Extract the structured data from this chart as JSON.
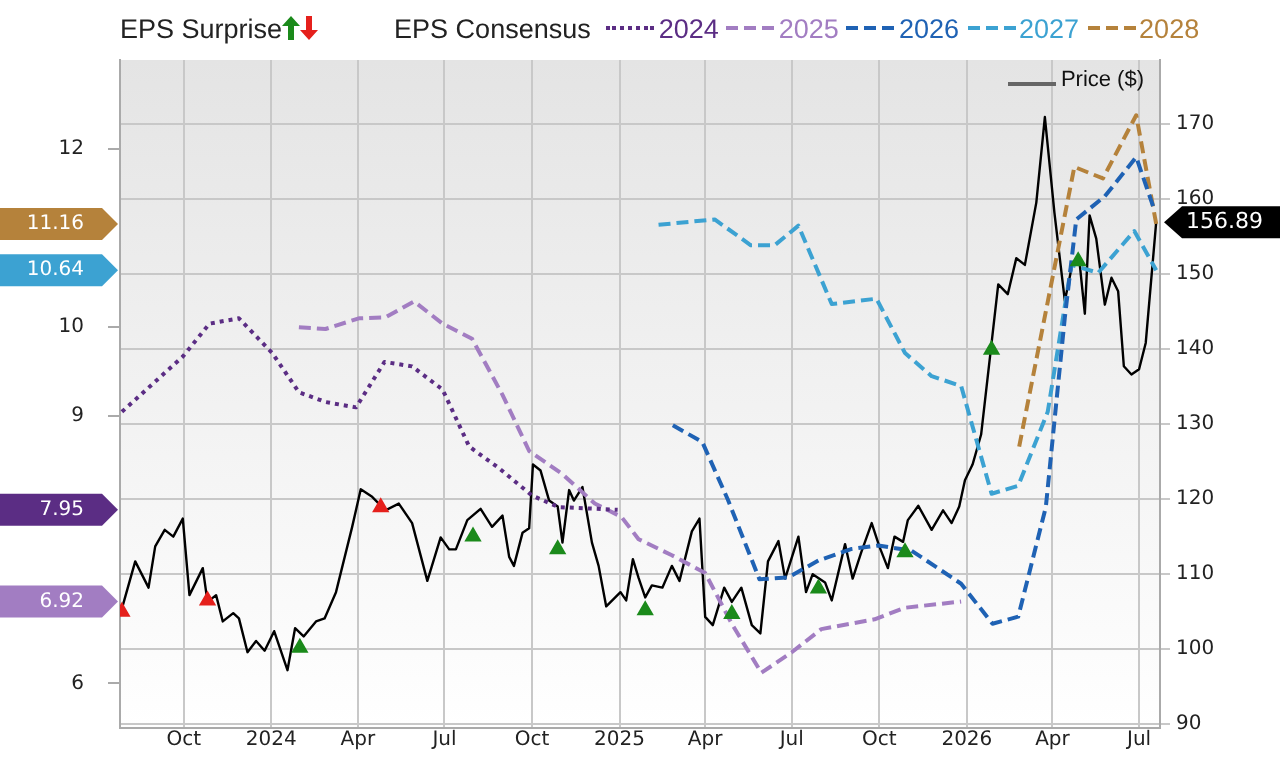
{
  "chart_data": {
    "type": "line",
    "annotations": [
      "EPS Surprise",
      "EPS Consensus"
    ],
    "legend": "top",
    "grid": true,
    "xlim": [
      "2023-07-26",
      "2026-07-23"
    ],
    "xticks": [
      {
        "value": "2023-10-01",
        "label": "Oct"
      },
      {
        "value": "2024-01-01",
        "label": "2024"
      },
      {
        "value": "2024-04-01",
        "label": "Apr"
      },
      {
        "value": "2024-07-01",
        "label": "Jul"
      },
      {
        "value": "2024-10-01",
        "label": "Oct"
      },
      {
        "value": "2025-01-01",
        "label": "2025"
      },
      {
        "value": "2025-04-01",
        "label": "Apr"
      },
      {
        "value": "2025-07-01",
        "label": "Jul"
      },
      {
        "value": "2025-10-01",
        "label": "Oct"
      },
      {
        "value": "2026-01-01",
        "label": "2026"
      },
      {
        "value": "2026-04-01",
        "label": "Apr"
      },
      {
        "value": "2026-07-01",
        "label": "Jul"
      }
    ],
    "ylim": [
      5.5,
      13
    ],
    "yticks": [
      6,
      {
        "value": 6.92,
        "label": "6.92"
      },
      {
        "value": 7.95,
        "label": "7.95"
      },
      9,
      10,
      {
        "value": 10.64,
        "label": "10.64"
      },
      {
        "value": 11.16,
        "label": "11.16"
      },
      12
    ],
    "y2lim": [
      89.5,
      178.5
    ],
    "y2ticks": [
      90,
      100,
      110,
      120,
      130,
      140,
      150,
      160,
      170
    ],
    "series": [
      {
        "name": "2024",
        "color": "#5b2d84",
        "line_style": "dotted",
        "x": [
          "2023-07-28",
          "2023-09-30",
          "2023-10-28",
          "2023-11-28",
          "2024-01-02",
          "2024-01-30",
          "2024-02-27",
          "2024-03-30",
          "2024-04-29",
          "2024-05-28",
          "2024-06-29",
          "2024-07-27",
          "2024-08-27",
          "2024-10-01",
          "2024-10-29",
          "2024-12-30"
        ],
        "values": [
          9.05,
          9.67,
          10.04,
          10.1,
          9.71,
          9.27,
          9.16,
          9.1,
          9.61,
          9.56,
          9.3,
          8.66,
          8.42,
          8.11,
          7.98,
          7.95
        ]
      },
      {
        "name": "2025",
        "color": "#a27dc2",
        "line_style": "dashed",
        "x": [
          "2024-01-30",
          "2024-02-27",
          "2024-04-02",
          "2024-04-30",
          "2024-05-30",
          "2024-06-29",
          "2024-07-30",
          "2024-08-31",
          "2024-09-28",
          "2024-11-02",
          "2024-12-06",
          "2025-01-03",
          "2025-01-21",
          "2025-02-25",
          "2025-04-01",
          "2025-04-29",
          "2025-05-30",
          "2025-07-01",
          "2025-08-01",
          "2025-09-26",
          "2025-10-28",
          "2025-12-26"
        ],
        "values": [
          10.0,
          9.98,
          10.1,
          10.11,
          10.29,
          10.04,
          9.87,
          9.24,
          8.61,
          8.35,
          8.02,
          7.87,
          7.62,
          7.44,
          7.24,
          6.67,
          6.12,
          6.35,
          6.61,
          6.72,
          6.85,
          6.92
        ]
      },
      {
        "name": "2026",
        "color": "#1f62b4",
        "line_style": "dashed",
        "x": [
          "2025-02-26",
          "2025-03-29",
          "2025-04-25",
          "2025-05-28",
          "2025-06-27",
          "2025-07-29",
          "2025-09-02",
          "2025-09-30",
          "2025-11-04",
          "2025-12-26",
          "2026-01-28",
          "2026-02-24",
          "2026-03-25",
          "2026-04-14",
          "2026-04-26",
          "2026-05-26",
          "2026-06-28",
          "2026-07-17"
        ],
        "values": [
          8.9,
          8.71,
          8.06,
          7.17,
          7.19,
          7.38,
          7.51,
          7.55,
          7.49,
          7.12,
          6.67,
          6.75,
          7.98,
          10.11,
          11.21,
          11.47,
          11.91,
          11.32
        ]
      },
      {
        "name": "2027",
        "color": "#3ca2d2",
        "line_style": "dashed",
        "x": [
          "2025-02-11",
          "2025-04-11",
          "2025-05-19",
          "2025-06-13",
          "2025-07-08",
          "2025-08-12",
          "2025-09-28",
          "2025-10-28",
          "2025-11-25",
          "2025-12-26",
          "2026-01-27",
          "2026-02-24",
          "2026-03-27",
          "2026-04-21",
          "2026-05-19",
          "2026-06-26",
          "2026-07-19"
        ],
        "values": [
          11.15,
          11.21,
          10.92,
          10.92,
          11.14,
          10.26,
          10.32,
          9.71,
          9.45,
          9.34,
          8.13,
          8.22,
          9.05,
          10.7,
          10.61,
          11.08,
          10.64
        ]
      },
      {
        "name": "2028",
        "color": "#b5823b",
        "line_style": "dashed",
        "x": [
          "2026-02-25",
          "2026-04-24",
          "2026-05-24",
          "2026-06-28",
          "2026-07-19"
        ],
        "values": [
          8.66,
          11.8,
          11.67,
          12.38,
          11.16
        ]
      },
      {
        "name": "Price ($)",
        "color": "#000000",
        "axis": "y2",
        "line_style": "solid",
        "x": [
          "2023-07-28",
          "2023-08-11",
          "2023-08-25",
          "2023-09-01",
          "2023-09-11",
          "2023-09-20",
          "2023-09-30",
          "2023-10-07",
          "2023-10-21",
          "2023-10-26",
          "2023-11-04",
          "2023-11-11",
          "2023-11-22",
          "2023-11-28",
          "2023-12-07",
          "2023-12-16",
          "2023-12-25",
          "2024-01-04",
          "2024-01-11",
          "2024-01-18",
          "2024-01-26",
          "2024-02-04",
          "2024-02-17",
          "2024-02-26",
          "2024-03-09",
          "2024-03-26",
          "2024-04-04",
          "2024-04-16",
          "2024-04-30",
          "2024-05-14",
          "2024-05-28",
          "2024-06-13",
          "2024-06-27",
          "2024-07-06",
          "2024-07-13",
          "2024-07-25",
          "2024-08-08",
          "2024-08-20",
          "2024-08-31",
          "2024-09-07",
          "2024-09-12",
          "2024-09-21",
          "2024-09-28",
          "2024-10-02",
          "2024-10-10",
          "2024-10-19",
          "2024-10-28",
          "2024-11-02",
          "2024-11-09",
          "2024-11-14",
          "2024-11-23",
          "2024-12-03",
          "2024-12-10",
          "2024-12-18",
          "2025-01-02",
          "2025-01-08",
          "2025-01-15",
          "2025-01-21",
          "2025-01-28",
          "2025-02-04",
          "2025-02-15",
          "2025-02-25",
          "2025-03-05",
          "2025-03-18",
          "2025-03-26",
          "2025-04-01",
          "2025-04-09",
          "2025-04-21",
          "2025-04-29",
          "2025-05-09",
          "2025-05-20",
          "2025-05-29",
          "2025-06-06",
          "2025-06-17",
          "2025-06-24",
          "2025-07-08",
          "2025-07-16",
          "2025-07-23",
          "2025-08-05",
          "2025-08-12",
          "2025-08-26",
          "2025-09-03",
          "2025-09-12",
          "2025-09-23",
          "2025-10-01",
          "2025-10-10",
          "2025-10-17",
          "2025-10-26",
          "2025-10-31",
          "2025-11-11",
          "2025-11-25",
          "2025-12-07",
          "2025-12-16",
          "2025-12-24",
          "2025-12-30",
          "2026-01-07",
          "2026-01-16",
          "2026-01-27",
          "2026-02-03",
          "2026-02-13",
          "2026-02-22",
          "2026-03-03",
          "2026-03-15",
          "2026-03-24",
          "2026-04-03",
          "2026-04-14",
          "2026-04-22",
          "2026-04-29",
          "2026-05-05",
          "2026-05-10",
          "2026-05-17",
          "2026-05-26",
          "2026-06-02",
          "2026-06-09",
          "2026-06-15",
          "2026-06-23",
          "2026-07-01",
          "2026-07-08",
          "2026-07-19"
        ],
        "values": [
          105.4,
          111.7,
          108.2,
          113.7,
          115.9,
          115,
          117.4,
          107.2,
          110.8,
          106.3,
          107.2,
          103.7,
          104.8,
          104.1,
          99.6,
          101.1,
          99.8,
          102.4,
          99.8,
          97.2,
          102.8,
          101.7,
          103.7,
          104.1,
          107.6,
          116.3,
          121.3,
          120.3,
          118.5,
          119.4,
          116.8,
          109.1,
          114.9,
          113.3,
          113.3,
          117.2,
          118.7,
          116.3,
          117.8,
          112.3,
          111.1,
          115.5,
          116.1,
          124.6,
          123.8,
          119.8,
          119,
          114.2,
          121.2,
          119.8,
          121.6,
          114.2,
          111.1,
          105.7,
          107.6,
          106.5,
          112,
          109.5,
          106.9,
          108.5,
          108.2,
          111.1,
          109.1,
          115.7,
          117.4,
          104.3,
          103.2,
          108.2,
          106.3,
          108.2,
          103.2,
          102.1,
          111.7,
          114.4,
          109.4,
          115,
          107.6,
          110,
          108.9,
          106.5,
          114,
          109.4,
          112.9,
          116.8,
          113.7,
          110.8,
          115,
          114.3,
          117.2,
          119.1,
          115.9,
          118.5,
          116.8,
          119,
          122.5,
          124.6,
          128.6,
          140.8,
          148.6,
          147.3,
          152.1,
          151.2,
          159.5,
          170.9,
          158.2,
          146.4,
          151.4,
          152.1,
          144.7,
          157.8,
          154.7,
          145.9,
          149.5,
          147.7,
          137.7,
          136.6,
          137.3,
          140.8,
          156.89
        ],
        "value_labels": [
          null,
          null,
          null,
          null,
          null,
          null,
          null,
          null,
          null,
          null,
          null,
          null,
          null,
          null,
          null,
          null,
          null,
          null,
          null,
          null,
          null,
          null,
          null,
          null,
          null,
          null,
          null,
          null,
          null,
          null,
          null,
          null,
          null,
          null,
          null,
          null,
          null,
          null,
          null,
          null,
          null,
          null,
          null,
          null,
          null,
          null,
          null,
          null,
          null,
          null,
          null,
          null,
          null,
          null,
          null,
          null,
          null,
          null,
          null,
          null,
          null,
          null,
          null,
          null,
          null,
          null,
          null,
          null,
          null,
          null,
          null,
          null,
          null,
          null,
          null,
          null,
          null,
          null,
          null,
          null,
          null,
          null,
          null,
          null,
          null,
          null,
          null,
          null,
          null,
          null,
          null,
          null,
          null,
          null,
          null,
          null,
          null,
          null,
          null,
          null,
          null,
          null,
          null,
          null,
          null,
          null,
          null,
          null,
          null,
          null,
          null,
          null,
          null,
          null,
          null,
          null,
          null,
          null,
          "156.89"
        ]
      },
      {
        "type": "scatter",
        "color": "#1b8a1b",
        "axis": "y2",
        "marker": "triangle",
        "x": [
          "2024-01-31",
          "2024-07-31",
          "2024-10-28",
          "2025-01-28",
          "2025-04-29",
          "2025-07-29",
          "2025-10-28",
          "2026-01-27",
          "2026-04-28"
        ],
        "values": [
          100.2,
          115,
          113.3,
          105.2,
          104.7,
          108.1,
          112.9,
          139.9,
          151.7
        ]
      },
      {
        "type": "scatter",
        "color": "#e5201c",
        "axis": "y2",
        "marker": "triangle",
        "x": [
          "2023-07-28",
          "2023-10-26",
          "2024-04-25"
        ],
        "values": [
          105,
          106.5,
          118.9
        ]
      }
    ]
  }
}
